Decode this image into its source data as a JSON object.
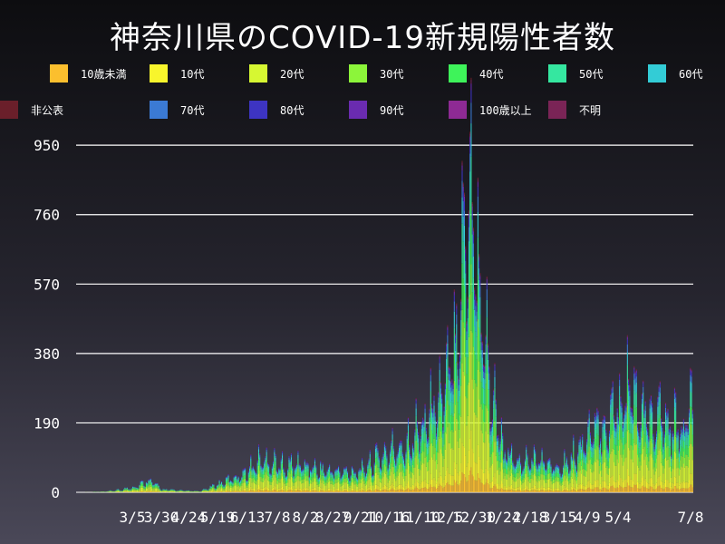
{
  "chart_data": {
    "type": "bar",
    "stacked": true,
    "title": "神奈川県のCOVID-19新規陽性者数",
    "ylim": [
      0,
      1000
    ],
    "yticks": [
      0,
      190,
      380,
      570,
      760,
      950
    ],
    "xticks": [
      "3/5",
      "3/30",
      "4/24",
      "5/19",
      "6/13",
      "7/8",
      "8/2",
      "8/27",
      "9/21",
      "10/16",
      "11/10",
      "12/5",
      "12/30",
      "1/24",
      "2/18",
      "3/15",
      "4/9",
      "5/4",
      "7/8"
    ],
    "grid": true,
    "legend_position": "top",
    "series": [
      {
        "name": "10歳未満",
        "color": "#fbbf2e"
      },
      {
        "name": "10代",
        "color": "#f8f52c"
      },
      {
        "name": "20代",
        "color": "#d6f732"
      },
      {
        "name": "30代",
        "color": "#8cf53a"
      },
      {
        "name": "40代",
        "color": "#3ef35a"
      },
      {
        "name": "50代",
        "color": "#35e7a0"
      },
      {
        "name": "60代",
        "color": "#33ccd6"
      },
      {
        "name": "70代",
        "color": "#3b7ad4"
      },
      {
        "name": "80代",
        "color": "#3d34c2"
      },
      {
        "name": "90代",
        "color": "#6a2bb0"
      },
      {
        "name": "100歳以上",
        "color": "#8e2a94"
      },
      {
        "name": "不明",
        "color": "#7a2456"
      },
      {
        "name": "非公表",
        "color": "#6a1f2a"
      }
    ],
    "series_shares": [
      0.06,
      0.09,
      0.24,
      0.16,
      0.14,
      0.12,
      0.08,
      0.05,
      0.03,
      0.015,
      0.002,
      0.008,
      0.005
    ],
    "daily_totals_profile": [
      [
        0,
        0
      ],
      [
        25,
        2
      ],
      [
        40,
        8
      ],
      [
        55,
        20
      ],
      [
        65,
        40
      ],
      [
        75,
        10
      ],
      [
        95,
        5
      ],
      [
        110,
        3
      ],
      [
        130,
        30
      ],
      [
        150,
        60
      ],
      [
        165,
        100
      ],
      [
        185,
        80
      ],
      [
        200,
        85
      ],
      [
        215,
        70
      ],
      [
        240,
        60
      ],
      [
        255,
        70
      ],
      [
        270,
        110
      ],
      [
        285,
        130
      ],
      [
        300,
        170
      ],
      [
        310,
        220
      ],
      [
        320,
        280
      ],
      [
        330,
        320
      ],
      [
        338,
        500
      ],
      [
        346,
        800
      ],
      [
        350,
        960
      ],
      [
        355,
        750
      ],
      [
        362,
        500
      ],
      [
        370,
        280
      ],
      [
        380,
        120
      ],
      [
        395,
        90
      ],
      [
        410,
        100
      ],
      [
        425,
        80
      ],
      [
        440,
        100
      ],
      [
        455,
        170
      ],
      [
        470,
        200
      ],
      [
        480,
        260
      ],
      [
        490,
        320
      ],
      [
        500,
        250
      ],
      [
        510,
        210
      ],
      [
        520,
        220
      ],
      [
        530,
        200
      ],
      [
        540,
        190
      ],
      [
        548,
        290
      ]
    ]
  }
}
